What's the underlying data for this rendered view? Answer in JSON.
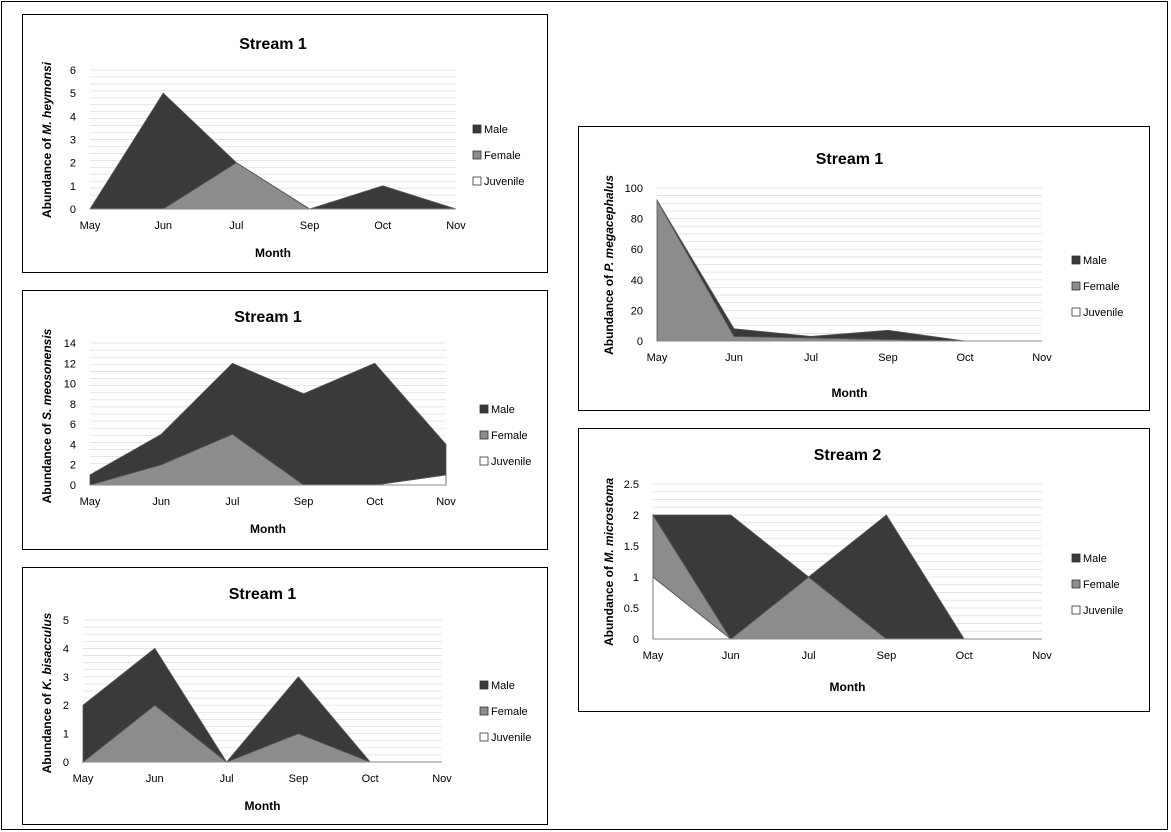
{
  "chart_data": [
    {
      "type": "area",
      "title": "Stream 1",
      "xlabel": "Month",
      "ylabel_prefix": "Abundance of ",
      "ylabel_species": "M. heymonsi",
      "categories": [
        "May",
        "Jun",
        "Jul",
        "Sep",
        "Oct",
        "Nov"
      ],
      "ylim": [
        0,
        6
      ],
      "yticks": [
        0,
        1,
        2,
        3,
        4,
        5,
        6
      ],
      "grid": true,
      "legend_position": "right",
      "series": [
        {
          "name": "Male",
          "color": "#3a3a3a",
          "values": [
            0,
            5,
            0,
            0,
            1,
            0
          ]
        },
        {
          "name": "Female",
          "color": "#8c8c8c",
          "values": [
            0,
            0,
            2,
            0,
            0,
            0
          ]
        },
        {
          "name": "Juvenile",
          "color": "#ffffff",
          "values": [
            0,
            0,
            0,
            0,
            0,
            0
          ]
        }
      ]
    },
    {
      "type": "area",
      "title": "Stream 1",
      "xlabel": "Month",
      "ylabel_prefix": "Abundance of ",
      "ylabel_species": "S. meosonensis",
      "categories": [
        "May",
        "Jun",
        "Jul",
        "Sep",
        "Oct",
        "Nov"
      ],
      "ylim": [
        0,
        14
      ],
      "yticks": [
        0,
        2,
        4,
        6,
        8,
        10,
        12,
        14
      ],
      "grid": true,
      "legend_position": "right",
      "series": [
        {
          "name": "Male",
          "color": "#3a3a3a",
          "values": [
            1,
            3,
            7,
            9,
            12,
            3
          ]
        },
        {
          "name": "Female",
          "color": "#8c8c8c",
          "values": [
            0,
            2,
            5,
            0,
            0,
            0
          ]
        },
        {
          "name": "Juvenile",
          "color": "#ffffff",
          "values": [
            0,
            0,
            0,
            0,
            0,
            1
          ]
        }
      ]
    },
    {
      "type": "area",
      "title": "Stream 1",
      "xlabel": "Month",
      "ylabel_prefix": "Abundance of ",
      "ylabel_species": "K. bisacculus",
      "categories": [
        "May",
        "Jun",
        "Jul",
        "Sep",
        "Oct",
        "Nov"
      ],
      "ylim": [
        0,
        5
      ],
      "yticks": [
        0,
        1,
        2,
        3,
        4,
        5
      ],
      "grid": true,
      "legend_position": "right",
      "series": [
        {
          "name": "Male",
          "color": "#3a3a3a",
          "values": [
            2,
            2,
            0,
            2,
            0,
            0
          ]
        },
        {
          "name": "Female",
          "color": "#8c8c8c",
          "values": [
            0,
            2,
            0,
            1,
            0,
            0
          ]
        },
        {
          "name": "Juvenile",
          "color": "#ffffff",
          "values": [
            0,
            0,
            0,
            0,
            0,
            0
          ]
        }
      ]
    },
    {
      "type": "area",
      "title": "Stream 1",
      "xlabel": "Month",
      "ylabel_prefix": "Abundance of ",
      "ylabel_species": "P. megacephalus",
      "categories": [
        "May",
        "Jun",
        "Jul",
        "Sep",
        "Oct",
        "Nov"
      ],
      "ylim": [
        0,
        100
      ],
      "yticks": [
        0,
        20,
        40,
        60,
        80,
        100
      ],
      "grid": true,
      "legend_position": "right",
      "series": [
        {
          "name": "Male",
          "color": "#3a3a3a",
          "values": [
            0,
            5,
            1,
            6,
            0,
            0
          ]
        },
        {
          "name": "Female",
          "color": "#8c8c8c",
          "values": [
            92,
            3,
            2,
            1,
            0,
            0
          ]
        },
        {
          "name": "Juvenile",
          "color": "#ffffff",
          "values": [
            0,
            0,
            0,
            0,
            0,
            0
          ]
        }
      ]
    },
    {
      "type": "area",
      "title": "Stream 2",
      "xlabel": "Month",
      "ylabel_prefix": "Abundance of ",
      "ylabel_species": "M. microstoma",
      "categories": [
        "May",
        "Jun",
        "Jul",
        "Sep",
        "Oct",
        "Nov"
      ],
      "ylim": [
        0,
        2.5
      ],
      "yticks": [
        0,
        0.5,
        1,
        1.5,
        2,
        2.5
      ],
      "grid": true,
      "legend_position": "right",
      "series": [
        {
          "name": "Male",
          "color": "#3a3a3a",
          "values": [
            0,
            2,
            0,
            2,
            0,
            0
          ]
        },
        {
          "name": "Female",
          "color": "#8c8c8c",
          "values": [
            1,
            0,
            1,
            0,
            0,
            0
          ]
        },
        {
          "name": "Juvenile",
          "color": "#ffffff",
          "values": [
            1,
            0,
            0,
            0,
            0,
            0
          ]
        }
      ]
    }
  ]
}
